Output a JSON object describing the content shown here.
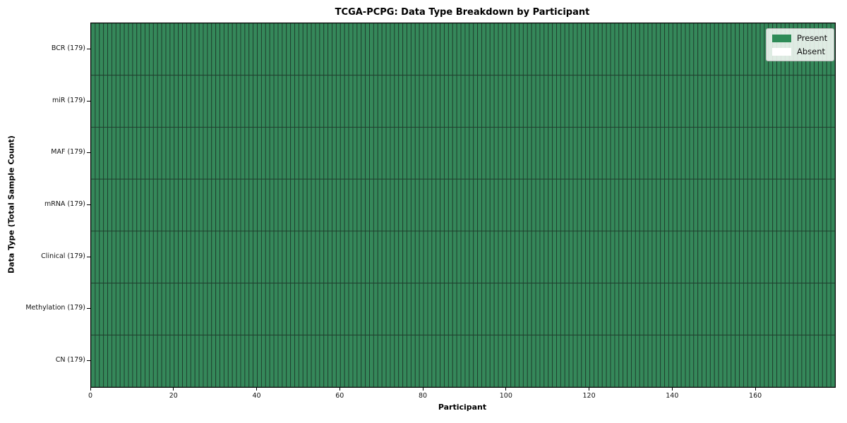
{
  "title": "TCGA-PCPG: Data Type Breakdown by Participant",
  "x_axis": {
    "label": "Participant",
    "ticks": [
      0,
      20,
      40,
      60,
      80,
      100,
      120,
      140,
      160
    ],
    "min": 0,
    "max": 179
  },
  "y_axis": {
    "label": "Data Type (Total Sample Count)"
  },
  "legend": {
    "items": [
      {
        "label": "Present",
        "color": "#2e8b57"
      },
      {
        "label": "Absent",
        "color": "#ffffff"
      }
    ]
  },
  "chart_data": {
    "type": "heatmap",
    "title": "TCGA-PCPG: Data Type Breakdown by Participant",
    "xlabel": "Participant",
    "ylabel": "Data Type (Total Sample Count)",
    "xlim": [
      0,
      179
    ],
    "x_ticks": [
      0,
      20,
      40,
      60,
      80,
      100,
      120,
      140,
      160
    ],
    "n_participants": 179,
    "rows": [
      {
        "label": "BCR (179)",
        "name": "BCR",
        "total": 179,
        "present": 179,
        "absent": 0
      },
      {
        "label": "miR (179)",
        "name": "miR",
        "total": 179,
        "present": 179,
        "absent": 0
      },
      {
        "label": "MAF (179)",
        "name": "MAF",
        "total": 179,
        "present": 179,
        "absent": 0
      },
      {
        "label": "mRNA (179)",
        "name": "mRNA",
        "total": 179,
        "present": 179,
        "absent": 0
      },
      {
        "label": "Clinical (179)",
        "name": "Clinical",
        "total": 179,
        "present": 179,
        "absent": 0
      },
      {
        "label": "Methylation (179)",
        "name": "Methylation",
        "total": 179,
        "present": 179,
        "absent": 0
      },
      {
        "label": "CN (179)",
        "name": "CN",
        "total": 179,
        "present": 179,
        "absent": 0
      }
    ],
    "colors": {
      "present": "#35885a",
      "absent": "#ffffff",
      "cell_edge": "#1f3d2d"
    },
    "legend_entries": [
      "Present",
      "Absent"
    ],
    "legend_position": "upper right",
    "grid": "cell borders between every participant column and data-type row"
  }
}
